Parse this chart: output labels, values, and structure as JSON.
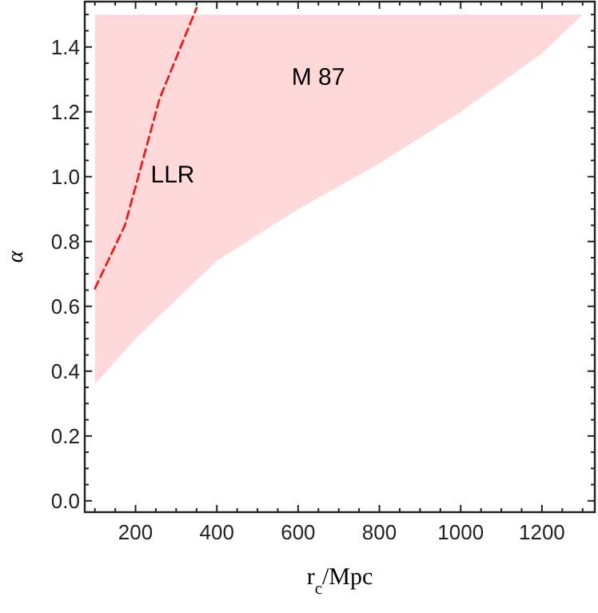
{
  "chart_data": {
    "type": "area",
    "xlabel": "r$_{c}$/Mpc",
    "ylabel": "α",
    "xlim": [
      75,
      1330
    ],
    "ylim": [
      -0.035,
      1.54
    ],
    "xticks": [
      {
        "value": 100,
        "label": null
      },
      {
        "value": 150,
        "label": null
      },
      200,
      {
        "value": 250,
        "label": null
      },
      {
        "value": 300,
        "label": null
      },
      {
        "value": 350,
        "label": null
      },
      400,
      {
        "value": 450,
        "label": null
      },
      {
        "value": 500,
        "label": null
      },
      {
        "value": 550,
        "label": null
      },
      600,
      {
        "value": 650,
        "label": null
      },
      {
        "value": 700,
        "label": null
      },
      {
        "value": 750,
        "label": null
      },
      800,
      {
        "value": 850,
        "label": null
      },
      {
        "value": 900,
        "label": null
      },
      {
        "value": 950,
        "label": null
      },
      1000,
      {
        "value": 1050,
        "label": null
      },
      {
        "value": 1100,
        "label": null
      },
      {
        "value": 1150,
        "label": null
      },
      1200,
      {
        "value": 1250,
        "label": null
      },
      {
        "value": 1300,
        "label": null
      }
    ],
    "yticks": [
      {
        "value": 0,
        "label": "0.0"
      },
      {
        "value": 0.05,
        "label": null
      },
      {
        "value": 0.1,
        "label": null
      },
      {
        "value": 0.15,
        "label": null
      },
      0.2,
      {
        "value": 0.25,
        "label": null
      },
      {
        "value": 0.3,
        "label": null
      },
      {
        "value": 0.35,
        "label": null
      },
      0.4,
      {
        "value": 0.45,
        "label": null
      },
      {
        "value": 0.5,
        "label": null
      },
      {
        "value": 0.55,
        "label": null
      },
      0.6,
      {
        "value": 0.65,
        "label": null
      },
      {
        "value": 0.7,
        "label": null
      },
      {
        "value": 0.75,
        "label": null
      },
      0.8,
      {
        "value": 0.85,
        "label": null
      },
      {
        "value": 0.9,
        "label": null
      },
      {
        "value": 0.95,
        "label": null
      },
      {
        "value": 1,
        "label": "1.0"
      },
      {
        "value": 1.05,
        "label": null
      },
      {
        "value": 1.1,
        "label": null
      },
      {
        "value": 1.15,
        "label": null
      },
      1.2,
      {
        "value": 1.25,
        "label": null
      },
      {
        "value": 1.3,
        "label": null
      },
      {
        "value": 1.35,
        "label": null
      },
      1.4,
      {
        "value": 1.45,
        "label": null
      },
      {
        "value": 1.5,
        "label": null
      }
    ],
    "grid": false,
    "series": [
      {
        "color": "#ffd9d9",
        "x": [
          100,
          100,
          200,
          400,
          600,
          800,
          1000,
          1200,
          1300
        ],
        "values": [
          1.5,
          0.36,
          0.5,
          0.74,
          0.9,
          1.04,
          1.2,
          1.38,
          1.5
        ]
      },
      {
        "type": "line",
        "color": "#ee1c1c",
        "line_style": "dashed",
        "x": [
          100,
          174,
          259,
          350
        ],
        "values": [
          0.655,
          0.85,
          1.24,
          1.52
        ]
      }
    ],
    "annotations": [
      "LLR",
      "M 87"
    ]
  }
}
